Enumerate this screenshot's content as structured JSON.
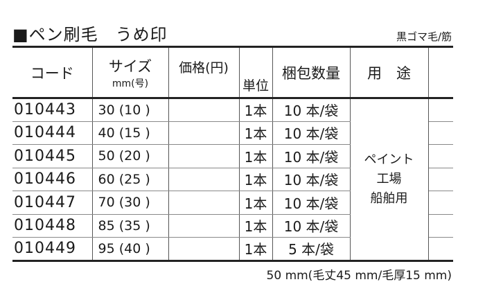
{
  "title": "■ペン刷毛　うめ印",
  "subtitle": "黒ゴマ毛/筋",
  "headers": {
    "code": "コード",
    "size": "サイズ",
    "size_unit": "mm(号)",
    "price": "価格(円)",
    "unit": "単位",
    "pack": "梱包数量",
    "usage": "用　途"
  },
  "rows": [
    {
      "code": "010443",
      "size": "30 (10 )",
      "price": "",
      "unit": "1本",
      "pack": "10 本/袋"
    },
    {
      "code": "010444",
      "size": "40 (15 )",
      "price": "",
      "unit": "1本",
      "pack": "10 本/袋"
    },
    {
      "code": "010445",
      "size": "50 (20 )",
      "price": "",
      "unit": "1本",
      "pack": "10 本/袋"
    },
    {
      "code": "010446",
      "size": "60 (25 )",
      "price": "",
      "unit": "1本",
      "pack": "10 本/袋"
    },
    {
      "code": "010447",
      "size": "70 (30 )",
      "price": "",
      "unit": "1本",
      "pack": "10 本/袋"
    },
    {
      "code": "010448",
      "size": "85 (35 )",
      "price": "",
      "unit": "1本",
      "pack": "10 本/袋"
    },
    {
      "code": "010449",
      "size": "95 (40 )",
      "price": "",
      "unit": "1本",
      "pack": "5 本/袋"
    }
  ],
  "usage": [
    "ペイント",
    "工場",
    "船舶用"
  ],
  "note": "50 mm(毛丈45 mm/毛厚15 mm)"
}
